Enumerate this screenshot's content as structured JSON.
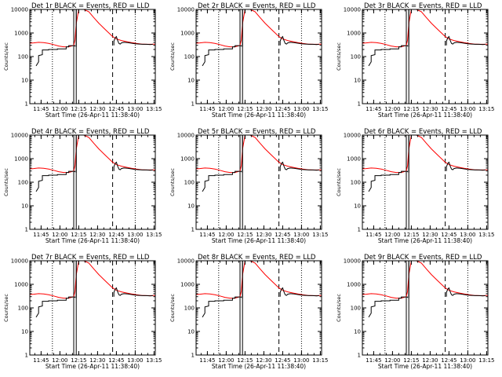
{
  "figure": {
    "colors": {
      "events": "#000000",
      "lld": "#ff0000",
      "background": "#ffffff"
    }
  },
  "chart_data": [
    {
      "type": "line",
      "title": "Det 1r BLACK = Events, RED = LLD",
      "xlabel": "Start Time (26-Apr-11 11:38:40)",
      "ylabel": "Counts/sec",
      "yscale": "log",
      "ylim": [
        1,
        10000
      ],
      "xticks": [
        "11:45",
        "12:00",
        "12:15",
        "12:30",
        "12:45",
        "13:00",
        "13:15"
      ],
      "yticks": [
        "1",
        "10",
        "100",
        "1000",
        "10000"
      ],
      "series": [
        {
          "name": "BLACK = Events",
          "color": "#000000"
        },
        {
          "name": "RED = LLD",
          "color": "#ff0000"
        }
      ]
    },
    {
      "type": "line",
      "title": "Det 2r BLACK = Events, RED = LLD",
      "xlabel": "Start Time (26-Apr-11 11:38:40)",
      "ylabel": "Counts/sec",
      "yscale": "log",
      "ylim": [
        1,
        10000
      ],
      "xticks": [
        "11:45",
        "12:00",
        "12:15",
        "12:30",
        "12:45",
        "13:00",
        "13:15"
      ],
      "yticks": [
        "1",
        "10",
        "100",
        "1000",
        "10000"
      ],
      "series": [
        {
          "name": "BLACK = Events",
          "color": "#000000"
        },
        {
          "name": "RED = LLD",
          "color": "#ff0000"
        }
      ]
    },
    {
      "type": "line",
      "title": "Det 3r BLACK = Events, RED = LLD",
      "xlabel": "Start Time (26-Apr-11 11:38:40)",
      "ylabel": "Counts/sec",
      "yscale": "log",
      "ylim": [
        1,
        10000
      ],
      "xticks": [
        "11:45",
        "12:00",
        "12:15",
        "12:30",
        "12:45",
        "13:00",
        "13:15"
      ],
      "yticks": [
        "1",
        "10",
        "100",
        "1000",
        "10000"
      ],
      "series": [
        {
          "name": "BLACK = Events",
          "color": "#000000"
        },
        {
          "name": "RED = LLD",
          "color": "#ff0000"
        }
      ]
    },
    {
      "type": "line",
      "title": "Det 4r BLACK = Events, RED = LLD",
      "xlabel": "Start Time (26-Apr-11 11:38:40)",
      "ylabel": "Counts/sec",
      "yscale": "log",
      "ylim": [
        1,
        10000
      ],
      "xticks": [
        "11:45",
        "12:00",
        "12:15",
        "12:30",
        "12:45",
        "13:00",
        "13:15"
      ],
      "yticks": [
        "1",
        "10",
        "100",
        "1000",
        "10000"
      ],
      "series": [
        {
          "name": "BLACK = Events",
          "color": "#000000"
        },
        {
          "name": "RED = LLD",
          "color": "#ff0000"
        }
      ]
    },
    {
      "type": "line",
      "title": "Det 5r BLACK = Events, RED = LLD",
      "xlabel": "Start Time (26-Apr-11 11:38:40)",
      "ylabel": "Counts/sec",
      "yscale": "log",
      "ylim": [
        1,
        10000
      ],
      "xticks": [
        "11:45",
        "12:00",
        "12:15",
        "12:30",
        "12:45",
        "13:00",
        "13:15"
      ],
      "yticks": [
        "1",
        "10",
        "100",
        "1000",
        "10000"
      ],
      "series": [
        {
          "name": "BLACK = Events",
          "color": "#000000"
        },
        {
          "name": "RED = LLD",
          "color": "#ff0000"
        }
      ]
    },
    {
      "type": "line",
      "title": "Det 6r BLACK = Events, RED = LLD",
      "xlabel": "Start Time (26-Apr-11 11:38:40)",
      "ylabel": "Counts/sec",
      "yscale": "log",
      "ylim": [
        1,
        10000
      ],
      "xticks": [
        "11:45",
        "12:00",
        "12:15",
        "12:30",
        "12:45",
        "13:00",
        "13:15"
      ],
      "yticks": [
        "1",
        "10",
        "100",
        "1000",
        "10000"
      ],
      "series": [
        {
          "name": "BLACK = Events",
          "color": "#000000"
        },
        {
          "name": "RED = LLD",
          "color": "#ff0000"
        }
      ]
    },
    {
      "type": "line",
      "title": "Det 7r BLACK = Events, RED = LLD",
      "xlabel": "Start Time (26-Apr-11 11:38:40)",
      "ylabel": "Counts/sec",
      "yscale": "log",
      "ylim": [
        1,
        10000
      ],
      "xticks": [
        "11:45",
        "12:00",
        "12:15",
        "12:30",
        "12:45",
        "13:00",
        "13:15"
      ],
      "yticks": [
        "1",
        "10",
        "100",
        "1000",
        "10000"
      ],
      "series": [
        {
          "name": "BLACK = Events",
          "color": "#000000"
        },
        {
          "name": "RED = LLD",
          "color": "#ff0000"
        }
      ]
    },
    {
      "type": "line",
      "title": "Det 8r BLACK = Events, RED = LLD",
      "xlabel": "Start Time (26-Apr-11 11:38:40)",
      "ylabel": "Counts/sec",
      "yscale": "log",
      "ylim": [
        1,
        10000
      ],
      "xticks": [
        "11:45",
        "12:00",
        "12:15",
        "12:30",
        "12:45",
        "13:00",
        "13:15"
      ],
      "yticks": [
        "1",
        "10",
        "100",
        "1000",
        "10000"
      ],
      "series": [
        {
          "name": "BLACK = Events",
          "color": "#000000"
        },
        {
          "name": "RED = LLD",
          "color": "#ff0000"
        }
      ]
    },
    {
      "type": "line",
      "title": "Det 9r BLACK = Events, RED = LLD",
      "xlabel": "Start Time (26-Apr-11 11:38:40)",
      "ylabel": "Counts/sec",
      "yscale": "log",
      "ylim": [
        1,
        10000
      ],
      "xticks": [
        "11:45",
        "12:00",
        "12:15",
        "12:30",
        "12:45",
        "13:00",
        "13:15"
      ],
      "yticks": [
        "1",
        "10",
        "100",
        "1000",
        "10000"
      ],
      "series": [
        {
          "name": "BLACK = Events",
          "color": "#000000"
        },
        {
          "name": "RED = LLD",
          "color": "#ff0000"
        }
      ]
    }
  ],
  "shared": {
    "x_range_min": [
      -3,
      97
    ],
    "vertical_markers": {
      "dotted": [
        15,
        81,
        97
      ],
      "solid_double": [
        32,
        34
      ],
      "dashed": [
        63
      ]
    },
    "events_segments": [
      {
        "t": [
          2,
          4,
          4,
          7,
          7,
          12,
          12,
          19,
          19,
          26,
          26,
          28,
          28,
          33,
          33
        ],
        "y": [
          40,
          60,
          110,
          120,
          190,
          190,
          200,
          200,
          210,
          210,
          260,
          260,
          290,
          290,
          270
        ]
      },
      {
        "t": [
          34,
          34
        ],
        "y": [
          260,
          10000
        ]
      },
      {
        "t": [
          64,
          64,
          65,
          66,
          67,
          68,
          69,
          70,
          72,
          75,
          78,
          81,
          84,
          87,
          90,
          93,
          95
        ],
        "y": [
          300,
          450,
          620,
          700,
          480,
          360,
          340,
          380,
          400,
          390,
          370,
          350,
          340,
          330,
          330,
          320,
          330
        ]
      }
    ],
    "lld_points": {
      "t": [
        -3,
        0,
        4,
        8,
        12,
        16,
        20,
        24,
        28,
        32,
        33,
        34,
        36,
        40,
        44,
        48,
        52,
        56,
        60,
        63,
        66,
        70,
        74,
        78,
        82,
        86,
        90,
        94,
        97
      ],
      "y": [
        370,
        380,
        400,
        390,
        360,
        320,
        280,
        260,
        260,
        300,
        500,
        2500,
        10000,
        10000,
        8000,
        4500,
        2600,
        1600,
        1000,
        700,
        560,
        480,
        430,
        390,
        360,
        340,
        330,
        330,
        340
      ]
    }
  }
}
